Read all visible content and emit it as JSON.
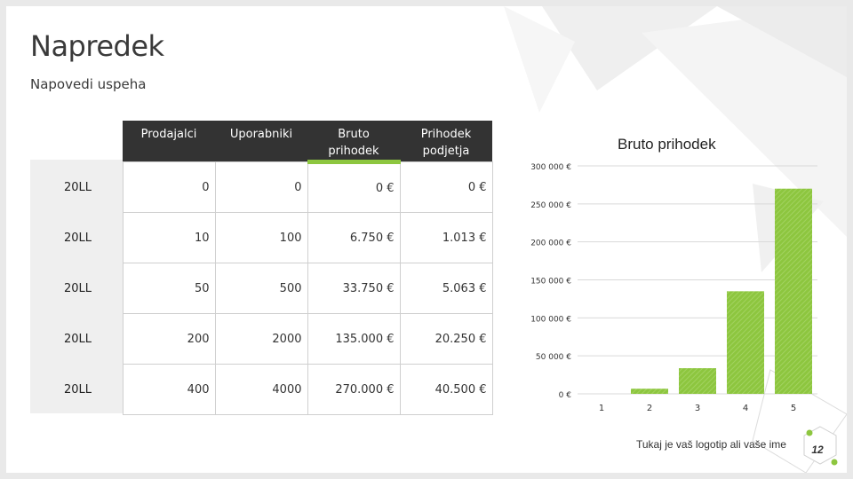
{
  "slide": {
    "title": "Napredek",
    "subtitle": "Napovedi uspeha"
  },
  "table": {
    "headers": [
      "Prodajalci",
      "Uporabniki",
      "Bruto prihodek",
      "Prihodek podjetja"
    ],
    "rows": [
      {
        "year": "20LL",
        "cells": [
          "0",
          "0",
          "0 €",
          "0 €"
        ]
      },
      {
        "year": "20LL",
        "cells": [
          "10",
          "100",
          "6.750 €",
          "1.013 €"
        ]
      },
      {
        "year": "20LL",
        "cells": [
          "50",
          "500",
          "33.750 €",
          "5.063 €"
        ]
      },
      {
        "year": "20LL",
        "cells": [
          "200",
          "2000",
          "135.000 €",
          "20.250 €"
        ]
      },
      {
        "year": "20LL",
        "cells": [
          "400",
          "4000",
          "270.000 €",
          "40.500 €"
        ]
      }
    ]
  },
  "chart_data": {
    "type": "bar",
    "title": "Bruto prihodek",
    "categories": [
      "1",
      "2",
      "3",
      "4",
      "5"
    ],
    "values": [
      0,
      6750,
      33750,
      135000,
      270000
    ],
    "ylim": [
      0,
      300000
    ],
    "yticks": [
      0,
      50000,
      100000,
      150000,
      200000,
      250000,
      300000
    ],
    "ytick_labels": [
      "0 €",
      "50 000 €",
      "100 000 €",
      "150 000 €",
      "200 000 €",
      "250 000 €",
      "300 000 €"
    ],
    "grid": true,
    "bar_color": "#8dc63f"
  },
  "footer": {
    "logo_text": "Tukaj je vaš logotip ali vaše ime",
    "page_number": "12"
  },
  "colors": {
    "accent": "#8dc63f",
    "header_bg": "#333333"
  }
}
